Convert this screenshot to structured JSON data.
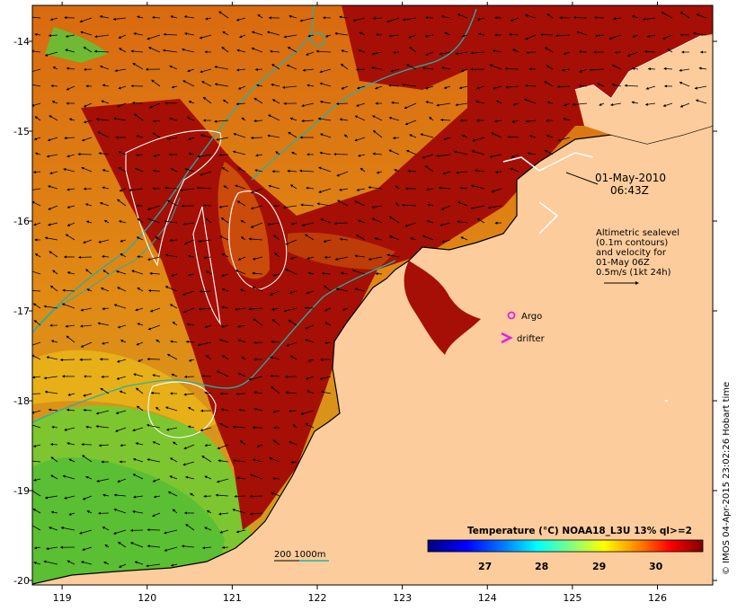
{
  "map": {
    "x_ticks": [
      "119",
      "120",
      "121",
      "122",
      "123",
      "124",
      "125",
      "126"
    ],
    "y_ticks": [
      "-14",
      "-15",
      "-16",
      "-17",
      "-18",
      "-19",
      "-20"
    ],
    "lon_range": [
      118.65,
      126.65
    ],
    "lat_range": [
      -20.05,
      -13.6
    ],
    "colors": {
      "land": "#fccc9c",
      "sst_hot": "#a50f05",
      "sst_warm": "#e0620e",
      "sst_mid": "#f0a012",
      "sst_cool": "#5cc838",
      "contour": "#ffffff",
      "shelf": "#20b2aa",
      "coast": "#000000",
      "argo": "#e020e0"
    }
  },
  "date_label": {
    "line1": "01-May-2010",
    "line2": "06:43Z"
  },
  "altimetry_note": {
    "lines": [
      "Altimetric sealevel",
      "(0.1m contours)",
      "and velocity for",
      "01-May 06Z",
      "0.5m/s (1kt 24h)"
    ]
  },
  "legend": {
    "argo": "Argo",
    "drifter": "drifter",
    "depth_scale": "200  1000m"
  },
  "colorbar": {
    "title": "Temperature (°C) NOAA18_L3U 13% ql>=2",
    "ticks": [
      "27",
      "28",
      "29",
      "30"
    ],
    "stops": [
      "#00007f",
      "#0000ff",
      "#007fff",
      "#00ffff",
      "#7fff7f",
      "#ffff00",
      "#ff7f00",
      "#ff0000",
      "#7f0000"
    ]
  },
  "credit": "© IMOS 04-Apr-2015 23:02:26 Hobart time"
}
